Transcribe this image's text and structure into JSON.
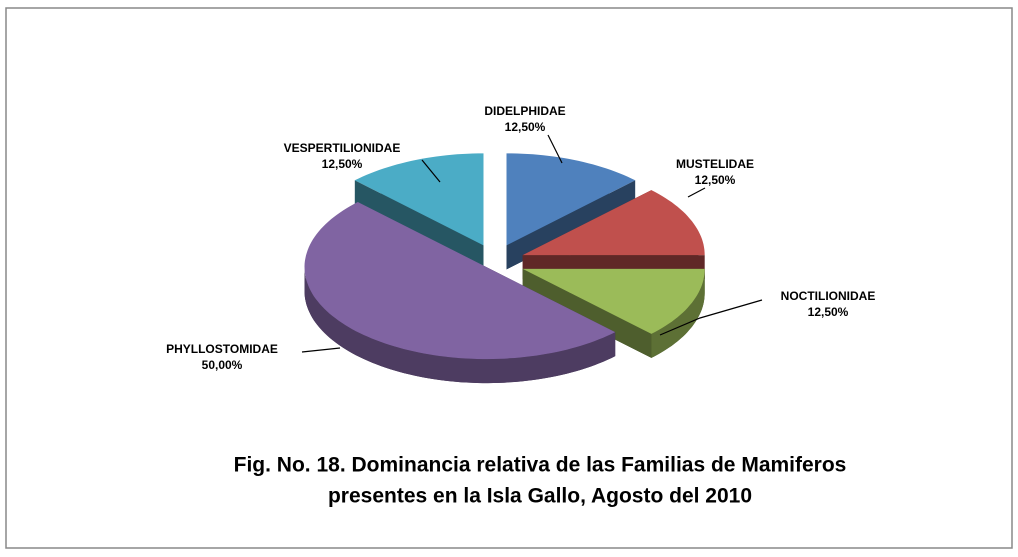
{
  "chart_data": {
    "type": "pie",
    "title": [
      "Fig. No. 18. Dominancia relativa de las Familias de Mamiferos",
      "presentes en la Isla Gallo, Agosto del 2010"
    ],
    "categories": [
      "DIDELPHIDAE",
      "MUSTELIDAE",
      "NOCTILIONIDAE",
      "PHYLLOSTOMIDAE",
      "VESPERTILIONIDAE"
    ],
    "values": [
      12.5,
      12.5,
      12.5,
      50,
      12.5
    ],
    "value_labels": [
      "12,50%",
      "12,50%",
      "12,50%",
      "50,00%",
      "12,50%"
    ],
    "colors": [
      "#4f81bd",
      "#c0504d",
      "#9bbb59",
      "#8064a2",
      "#4bacc6"
    ]
  }
}
